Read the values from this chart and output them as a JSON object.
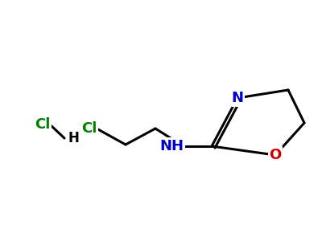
{
  "background_color": "#ffffff",
  "atom_colors": {
    "Cl": "#008000",
    "N": "#0000cd",
    "O": "#cc0000",
    "H": "#000000",
    "C": "#000000"
  },
  "figure_width": 4.0,
  "figure_height": 3.0,
  "dpi": 100,
  "lw": 2.2,
  "fontsize": 13
}
